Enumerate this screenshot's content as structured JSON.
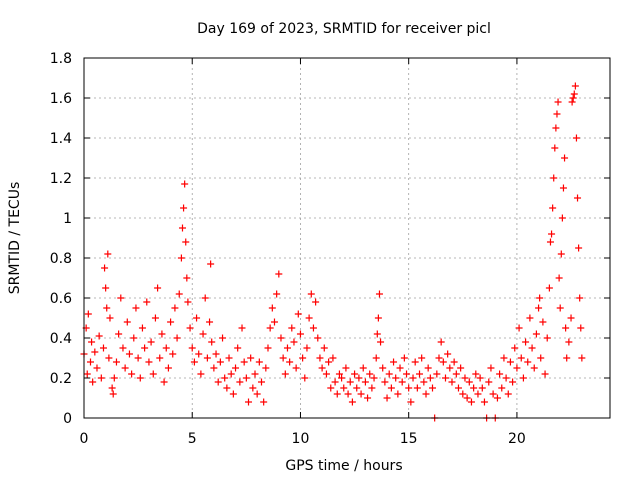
{
  "chart_data": {
    "type": "scatter",
    "title": "Day 169 of 2023, SRMTID for receiver picl",
    "xlabel": "GPS time / hours",
    "ylabel": "SRMTID / TECUs",
    "xlim": [
      0,
      24.3
    ],
    "ylim": [
      0,
      1.8
    ],
    "x_ticks": [
      0,
      5,
      10,
      15,
      20
    ],
    "x_tick_labels": [
      "0",
      "5",
      "10",
      "15",
      "20"
    ],
    "y_ticks": [
      0,
      0.2,
      0.4,
      0.6,
      0.8,
      1,
      1.2,
      1.4,
      1.6,
      1.8
    ],
    "y_tick_labels": [
      "0",
      "0.2",
      "0.4",
      "0.6",
      "0.8",
      "1",
      "1.2",
      "1.4",
      "1.6",
      "1.8"
    ],
    "grid": true,
    "marker": "+",
    "color": "#ff0000",
    "series": [
      {
        "name": "SRMTID",
        "points": [
          [
            0.0,
            0.32
          ],
          [
            0.1,
            0.45
          ],
          [
            0.15,
            0.22
          ],
          [
            0.2,
            0.52
          ],
          [
            0.3,
            0.28
          ],
          [
            0.35,
            0.38
          ],
          [
            0.4,
            0.18
          ],
          [
            0.5,
            0.33
          ],
          [
            0.6,
            0.25
          ],
          [
            0.7,
            0.41
          ],
          [
            0.8,
            0.2
          ],
          [
            0.9,
            0.35
          ],
          [
            0.95,
            0.75
          ],
          [
            1.0,
            0.65
          ],
          [
            1.05,
            0.55
          ],
          [
            1.1,
            0.82
          ],
          [
            1.15,
            0.3
          ],
          [
            1.2,
            0.5
          ],
          [
            1.3,
            0.15
          ],
          [
            1.35,
            0.12
          ],
          [
            1.4,
            0.2
          ],
          [
            1.5,
            0.28
          ],
          [
            1.6,
            0.42
          ],
          [
            1.7,
            0.6
          ],
          [
            1.8,
            0.35
          ],
          [
            1.9,
            0.25
          ],
          [
            2.0,
            0.48
          ],
          [
            2.1,
            0.32
          ],
          [
            2.2,
            0.22
          ],
          [
            2.3,
            0.4
          ],
          [
            2.4,
            0.55
          ],
          [
            2.5,
            0.3
          ],
          [
            2.6,
            0.2
          ],
          [
            2.7,
            0.45
          ],
          [
            2.8,
            0.35
          ],
          [
            2.9,
            0.58
          ],
          [
            3.0,
            0.28
          ],
          [
            3.1,
            0.38
          ],
          [
            3.2,
            0.22
          ],
          [
            3.3,
            0.5
          ],
          [
            3.4,
            0.65
          ],
          [
            3.5,
            0.3
          ],
          [
            3.6,
            0.42
          ],
          [
            3.7,
            0.18
          ],
          [
            3.8,
            0.35
          ],
          [
            3.9,
            0.25
          ],
          [
            4.0,
            0.48
          ],
          [
            4.1,
            0.32
          ],
          [
            4.2,
            0.55
          ],
          [
            4.3,
            0.4
          ],
          [
            4.4,
            0.62
          ],
          [
            4.5,
            0.8
          ],
          [
            4.55,
            0.95
          ],
          [
            4.6,
            1.05
          ],
          [
            4.65,
            1.17
          ],
          [
            4.7,
            0.88
          ],
          [
            4.75,
            0.7
          ],
          [
            4.8,
            0.58
          ],
          [
            4.9,
            0.45
          ],
          [
            5.0,
            0.35
          ],
          [
            5.1,
            0.28
          ],
          [
            5.2,
            0.5
          ],
          [
            5.3,
            0.32
          ],
          [
            5.4,
            0.22
          ],
          [
            5.5,
            0.42
          ],
          [
            5.6,
            0.6
          ],
          [
            5.7,
            0.3
          ],
          [
            5.8,
            0.48
          ],
          [
            5.85,
            0.77
          ],
          [
            5.9,
            0.38
          ],
          [
            6.0,
            0.25
          ],
          [
            6.1,
            0.32
          ],
          [
            6.2,
            0.18
          ],
          [
            6.3,
            0.28
          ],
          [
            6.4,
            0.4
          ],
          [
            6.5,
            0.2
          ],
          [
            6.6,
            0.15
          ],
          [
            6.7,
            0.3
          ],
          [
            6.8,
            0.22
          ],
          [
            6.9,
            0.12
          ],
          [
            7.0,
            0.25
          ],
          [
            7.1,
            0.35
          ],
          [
            7.2,
            0.18
          ],
          [
            7.3,
            0.45
          ],
          [
            7.4,
            0.28
          ],
          [
            7.5,
            0.2
          ],
          [
            7.6,
            0.08
          ],
          [
            7.7,
            0.3
          ],
          [
            7.8,
            0.15
          ],
          [
            7.9,
            0.22
          ],
          [
            8.0,
            0.12
          ],
          [
            8.1,
            0.28
          ],
          [
            8.2,
            0.18
          ],
          [
            8.3,
            0.08
          ],
          [
            8.4,
            0.25
          ],
          [
            8.5,
            0.35
          ],
          [
            8.6,
            0.45
          ],
          [
            8.7,
            0.55
          ],
          [
            8.8,
            0.48
          ],
          [
            8.9,
            0.62
          ],
          [
            9.0,
            0.72
          ],
          [
            9.1,
            0.4
          ],
          [
            9.2,
            0.3
          ],
          [
            9.3,
            0.22
          ],
          [
            9.4,
            0.35
          ],
          [
            9.5,
            0.28
          ],
          [
            9.6,
            0.45
          ],
          [
            9.7,
            0.38
          ],
          [
            9.8,
            0.25
          ],
          [
            9.9,
            0.52
          ],
          [
            10.0,
            0.42
          ],
          [
            10.1,
            0.3
          ],
          [
            10.2,
            0.2
          ],
          [
            10.3,
            0.35
          ],
          [
            10.4,
            0.5
          ],
          [
            10.5,
            0.62
          ],
          [
            10.6,
            0.45
          ],
          [
            10.7,
            0.58
          ],
          [
            10.8,
            0.4
          ],
          [
            10.9,
            0.3
          ],
          [
            11.0,
            0.25
          ],
          [
            11.1,
            0.35
          ],
          [
            11.2,
            0.22
          ],
          [
            11.3,
            0.28
          ],
          [
            11.4,
            0.15
          ],
          [
            11.5,
            0.3
          ],
          [
            11.6,
            0.18
          ],
          [
            11.7,
            0.12
          ],
          [
            11.8,
            0.22
          ],
          [
            11.9,
            0.2
          ],
          [
            12.0,
            0.15
          ],
          [
            12.1,
            0.25
          ],
          [
            12.2,
            0.12
          ],
          [
            12.3,
            0.18
          ],
          [
            12.4,
            0.08
          ],
          [
            12.5,
            0.22
          ],
          [
            12.6,
            0.15
          ],
          [
            12.7,
            0.2
          ],
          [
            12.8,
            0.12
          ],
          [
            12.9,
            0.25
          ],
          [
            13.0,
            0.18
          ],
          [
            13.1,
            0.1
          ],
          [
            13.2,
            0.22
          ],
          [
            13.3,
            0.15
          ],
          [
            13.4,
            0.2
          ],
          [
            13.5,
            0.3
          ],
          [
            13.55,
            0.42
          ],
          [
            13.6,
            0.5
          ],
          [
            13.65,
            0.62
          ],
          [
            13.7,
            0.38
          ],
          [
            13.8,
            0.25
          ],
          [
            13.9,
            0.18
          ],
          [
            14.0,
            0.1
          ],
          [
            14.1,
            0.22
          ],
          [
            14.2,
            0.15
          ],
          [
            14.3,
            0.28
          ],
          [
            14.4,
            0.2
          ],
          [
            14.5,
            0.12
          ],
          [
            14.6,
            0.25
          ],
          [
            14.7,
            0.18
          ],
          [
            14.8,
            0.3
          ],
          [
            14.9,
            0.22
          ],
          [
            15.0,
            0.15
          ],
          [
            15.1,
            0.08
          ],
          [
            15.2,
            0.2
          ],
          [
            15.3,
            0.28
          ],
          [
            15.4,
            0.15
          ],
          [
            15.5,
            0.22
          ],
          [
            15.6,
            0.3
          ],
          [
            15.7,
            0.18
          ],
          [
            15.8,
            0.12
          ],
          [
            15.9,
            0.25
          ],
          [
            16.0,
            0.2
          ],
          [
            16.1,
            0.15
          ],
          [
            16.2,
            0.0
          ],
          [
            16.3,
            0.22
          ],
          [
            16.4,
            0.3
          ],
          [
            16.5,
            0.38
          ],
          [
            16.6,
            0.28
          ],
          [
            16.7,
            0.2
          ],
          [
            16.8,
            0.32
          ],
          [
            16.9,
            0.25
          ],
          [
            17.0,
            0.18
          ],
          [
            17.1,
            0.28
          ],
          [
            17.2,
            0.22
          ],
          [
            17.3,
            0.15
          ],
          [
            17.4,
            0.25
          ],
          [
            17.5,
            0.12
          ],
          [
            17.6,
            0.2
          ],
          [
            17.7,
            0.1
          ],
          [
            17.8,
            0.18
          ],
          [
            17.9,
            0.08
          ],
          [
            18.0,
            0.15
          ],
          [
            18.1,
            0.22
          ],
          [
            18.2,
            0.12
          ],
          [
            18.3,
            0.2
          ],
          [
            18.4,
            0.15
          ],
          [
            18.5,
            0.08
          ],
          [
            18.6,
            0.0
          ],
          [
            18.7,
            0.18
          ],
          [
            18.8,
            0.25
          ],
          [
            18.9,
            0.12
          ],
          [
            19.0,
            0.0
          ],
          [
            19.1,
            0.1
          ],
          [
            19.2,
            0.22
          ],
          [
            19.3,
            0.15
          ],
          [
            19.4,
            0.3
          ],
          [
            19.5,
            0.2
          ],
          [
            19.6,
            0.12
          ],
          [
            19.7,
            0.28
          ],
          [
            19.8,
            0.18
          ],
          [
            19.9,
            0.35
          ],
          [
            20.0,
            0.25
          ],
          [
            20.1,
            0.45
          ],
          [
            20.2,
            0.3
          ],
          [
            20.3,
            0.2
          ],
          [
            20.4,
            0.38
          ],
          [
            20.5,
            0.28
          ],
          [
            20.6,
            0.5
          ],
          [
            20.7,
            0.35
          ],
          [
            20.8,
            0.25
          ],
          [
            20.9,
            0.42
          ],
          [
            21.0,
            0.55
          ],
          [
            21.05,
            0.6
          ],
          [
            21.1,
            0.3
          ],
          [
            21.2,
            0.48
          ],
          [
            21.3,
            0.22
          ],
          [
            21.4,
            0.4
          ],
          [
            21.5,
            0.65
          ],
          [
            21.55,
            0.88
          ],
          [
            21.6,
            0.92
          ],
          [
            21.65,
            1.05
          ],
          [
            21.7,
            1.2
          ],
          [
            21.75,
            1.35
          ],
          [
            21.8,
            1.45
          ],
          [
            21.85,
            1.52
          ],
          [
            21.9,
            1.58
          ],
          [
            21.95,
            0.7
          ],
          [
            22.0,
            0.55
          ],
          [
            22.05,
            0.82
          ],
          [
            22.1,
            1.0
          ],
          [
            22.15,
            1.15
          ],
          [
            22.2,
            1.3
          ],
          [
            22.25,
            0.45
          ],
          [
            22.3,
            0.3
          ],
          [
            22.4,
            0.38
          ],
          [
            22.5,
            0.5
          ],
          [
            22.55,
            1.58
          ],
          [
            22.6,
            1.6
          ],
          [
            22.65,
            1.62
          ],
          [
            22.7,
            1.66
          ],
          [
            22.75,
            1.4
          ],
          [
            22.8,
            1.1
          ],
          [
            22.85,
            0.85
          ],
          [
            22.9,
            0.6
          ],
          [
            22.95,
            0.45
          ],
          [
            23.0,
            0.3
          ]
        ]
      }
    ]
  }
}
